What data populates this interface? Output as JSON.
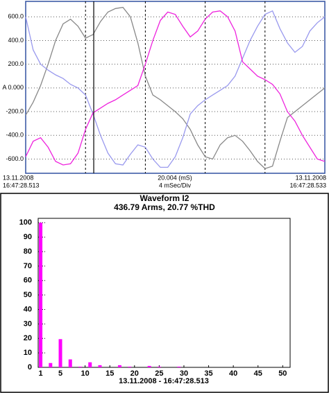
{
  "chart_data": [
    {
      "type": "line",
      "x": [
        0,
        0.5,
        1,
        1.5,
        2,
        2.5,
        3,
        3.5,
        4,
        4.5,
        5,
        5.5,
        6,
        6.5,
        7,
        7.5,
        8,
        8.5,
        9,
        9.5,
        10,
        10.5,
        11,
        11.5,
        12,
        12.5,
        13,
        13.5,
        14,
        14.5,
        15,
        15.5,
        16,
        16.5,
        17,
        17.5,
        18,
        18.5,
        19,
        19.5,
        20
      ],
      "xlim": [
        0,
        20
      ],
      "xticks": [
        4,
        8,
        12,
        16
      ],
      "ylim": [
        -720,
        730
      ],
      "yticks": [
        {
          "value": 600,
          "label": "600.0"
        },
        {
          "value": 400,
          "label": "400.0"
        },
        {
          "value": 200,
          "label": "200.0"
        },
        {
          "value": 0,
          "label": "A 0.000"
        },
        {
          "value": -200,
          "label": "-200.0"
        },
        {
          "value": -400,
          "label": "-400.0"
        },
        {
          "value": -600,
          "label": "-600.0"
        }
      ],
      "grid": true,
      "cursor_x": 4.55,
      "series": [
        {
          "color": "#888888",
          "values": [
            -230,
            -120,
            20,
            200,
            400,
            540,
            580,
            520,
            420,
            450,
            560,
            640,
            670,
            680,
            600,
            380,
            100,
            -60,
            -100,
            -150,
            -200,
            -260,
            -350,
            -480,
            -580,
            -600,
            -480,
            -420,
            -400,
            -450,
            -530,
            -620,
            -680,
            -660,
            -450,
            -250,
            -200,
            -150,
            -100,
            -50,
            0
          ]
        },
        {
          "color": "#9999ee",
          "values": [
            600,
            320,
            200,
            150,
            110,
            80,
            30,
            0,
            -60,
            -220,
            -400,
            -550,
            -640,
            -650,
            -560,
            -480,
            -500,
            -600,
            -670,
            -670,
            -580,
            -420,
            -220,
            -150,
            -100,
            -60,
            -20,
            20,
            100,
            250,
            400,
            520,
            620,
            650,
            500,
            380,
            300,
            350,
            480,
            550,
            600
          ]
        },
        {
          "color": "#ee22dd",
          "values": [
            -580,
            -450,
            -420,
            -500,
            -620,
            -650,
            -640,
            -550,
            -350,
            -210,
            -170,
            -130,
            -100,
            -60,
            -20,
            20,
            200,
            400,
            570,
            640,
            620,
            520,
            430,
            480,
            580,
            640,
            650,
            600,
            480,
            220,
            160,
            100,
            70,
            30,
            -50,
            -200,
            -280,
            -400,
            -500,
            -600,
            -620
          ]
        }
      ],
      "labels": {
        "start_date": "13.11.2008",
        "start_time": "16:47:28.513",
        "center": "20.004 (mS)",
        "scale": "4 mSec/Div",
        "end_date": "13.11.2008",
        "end_time": "16:47:28.533"
      }
    },
    {
      "type": "bar",
      "title": "Waveform I2",
      "subtitle": "436.79 Arms, 20.77 %THD",
      "x": [
        1,
        3,
        5,
        7,
        9,
        11,
        13,
        17,
        19,
        23,
        25,
        29
      ],
      "values": [
        100,
        3,
        19.5,
        5.5,
        0.5,
        3.5,
        1.5,
        1.5,
        0.5,
        1,
        0.5,
        0.5
      ],
      "color": "#ff00ff",
      "xlim": [
        0.5,
        51.5
      ],
      "xticks": [
        1,
        5,
        10,
        15,
        20,
        25,
        30,
        35,
        40,
        45,
        50
      ],
      "ylim": [
        0,
        103
      ],
      "yticks": [
        0,
        10,
        20,
        30,
        40,
        50,
        60,
        70,
        80,
        90,
        100
      ],
      "x_label": "13.11.2008 - 16:47:28.513"
    }
  ]
}
